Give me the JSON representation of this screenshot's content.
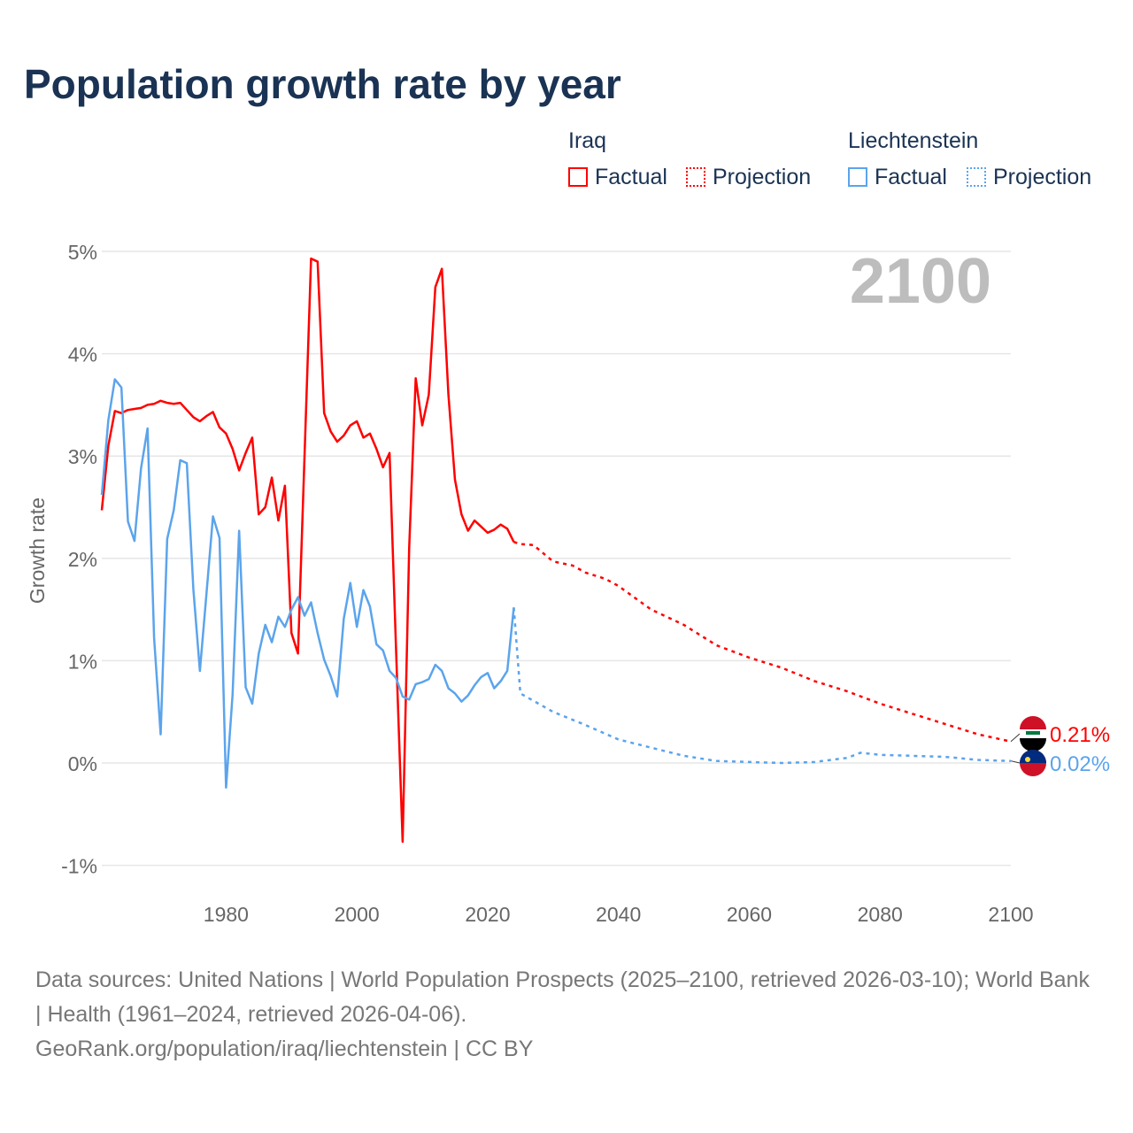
{
  "title": "Population growth rate by year",
  "legend": {
    "groups": [
      {
        "name": "Iraq",
        "factual": "Factual",
        "projection": "Projection",
        "color": "#ff0000"
      },
      {
        "name": "Liechtenstein",
        "factual": "Factual",
        "projection": "Projection",
        "color": "#5ba4ec"
      }
    ]
  },
  "footer": {
    "line1": "Data sources: United Nations | World Population Prospects (2025–2100, retrieved 2026-03-10); World Bank | Health (1961–2024, retrieved 2026-04-06).",
    "line2": "GeoRank.org/population/iraq/liechtenstein | CC BY"
  },
  "chart_data": {
    "type": "line",
    "title": "Population growth rate by year",
    "xlabel": "",
    "ylabel": "Growth rate",
    "year_label": "2100",
    "xlim": [
      1961,
      2100
    ],
    "ylim": [
      -1,
      5
    ],
    "xticks": [
      1980,
      2000,
      2020,
      2040,
      2060,
      2080,
      2100
    ],
    "yticks": [
      {
        "v": 5,
        "label": "5%"
      },
      {
        "v": 4,
        "label": "4%"
      },
      {
        "v": 3,
        "label": "3%"
      },
      {
        "v": 2,
        "label": "2%"
      },
      {
        "v": 1,
        "label": "1%"
      },
      {
        "v": 0,
        "label": "0%"
      },
      {
        "v": -1,
        "label": "-1%"
      }
    ],
    "series": [
      {
        "name": "Iraq",
        "color": "#ff0000",
        "end_label": "0.21%",
        "factual_start": 1961,
        "factual": [
          2.47,
          3.1,
          3.44,
          3.42,
          3.45,
          3.46,
          3.47,
          3.5,
          3.51,
          3.54,
          3.52,
          3.51,
          3.52,
          3.45,
          3.38,
          3.34,
          3.39,
          3.43,
          3.28,
          3.22,
          3.07,
          2.86,
          3.03,
          3.18,
          2.43,
          2.5,
          2.79,
          2.37,
          2.71,
          1.27,
          1.07,
          3.0,
          4.93,
          4.9,
          3.42,
          3.24,
          3.14,
          3.2,
          3.3,
          3.34,
          3.18,
          3.22,
          3.07,
          2.89,
          3.03,
          1.1,
          -0.77,
          2.1,
          3.76,
          3.3,
          3.6,
          4.65,
          4.83,
          3.6,
          2.77,
          2.43,
          2.27,
          2.37,
          2.31,
          2.25,
          2.28,
          2.33,
          2.29,
          2.16
        ],
        "projection": [
          [
            2024,
            2.16
          ],
          [
            2025,
            2.14
          ],
          [
            2027,
            2.13
          ],
          [
            2030,
            1.97
          ],
          [
            2033,
            1.93
          ],
          [
            2035,
            1.86
          ],
          [
            2038,
            1.8
          ],
          [
            2040,
            1.73
          ],
          [
            2045,
            1.5
          ],
          [
            2050,
            1.35
          ],
          [
            2055,
            1.15
          ],
          [
            2060,
            1.03
          ],
          [
            2065,
            0.93
          ],
          [
            2070,
            0.8
          ],
          [
            2075,
            0.7
          ],
          [
            2080,
            0.58
          ],
          [
            2085,
            0.48
          ],
          [
            2090,
            0.38
          ],
          [
            2095,
            0.28
          ],
          [
            2100,
            0.21
          ]
        ]
      },
      {
        "name": "Liechtenstein",
        "color": "#5ba4ec",
        "end_label": "0.02%",
        "factual_start": 1961,
        "factual": [
          2.62,
          3.35,
          3.75,
          3.67,
          2.36,
          2.17,
          2.88,
          3.27,
          1.22,
          0.28,
          2.19,
          2.47,
          2.96,
          2.93,
          1.7,
          0.9,
          1.65,
          2.41,
          2.2,
          -0.24,
          0.67,
          2.27,
          0.74,
          0.58,
          1.07,
          1.35,
          1.18,
          1.43,
          1.33,
          1.5,
          1.62,
          1.44,
          1.57,
          1.27,
          1.01,
          0.85,
          0.65,
          1.41,
          1.76,
          1.33,
          1.69,
          1.53,
          1.16,
          1.1,
          0.9,
          0.83,
          0.65,
          0.62,
          0.77,
          0.79,
          0.82,
          0.96,
          0.9,
          0.73,
          0.68,
          0.6,
          0.66,
          0.76,
          0.84,
          0.88,
          0.73,
          0.8,
          0.9,
          1.52
        ],
        "projection": [
          [
            2024,
            1.52
          ],
          [
            2025,
            0.68
          ],
          [
            2030,
            0.5
          ],
          [
            2035,
            0.37
          ],
          [
            2040,
            0.23
          ],
          [
            2045,
            0.15
          ],
          [
            2050,
            0.07
          ],
          [
            2055,
            0.02
          ],
          [
            2060,
            0.01
          ],
          [
            2065,
            0.0
          ],
          [
            2070,
            0.01
          ],
          [
            2075,
            0.05
          ],
          [
            2077,
            0.1
          ],
          [
            2080,
            0.08
          ],
          [
            2085,
            0.07
          ],
          [
            2090,
            0.06
          ],
          [
            2095,
            0.03
          ],
          [
            2100,
            0.02
          ]
        ]
      }
    ]
  }
}
